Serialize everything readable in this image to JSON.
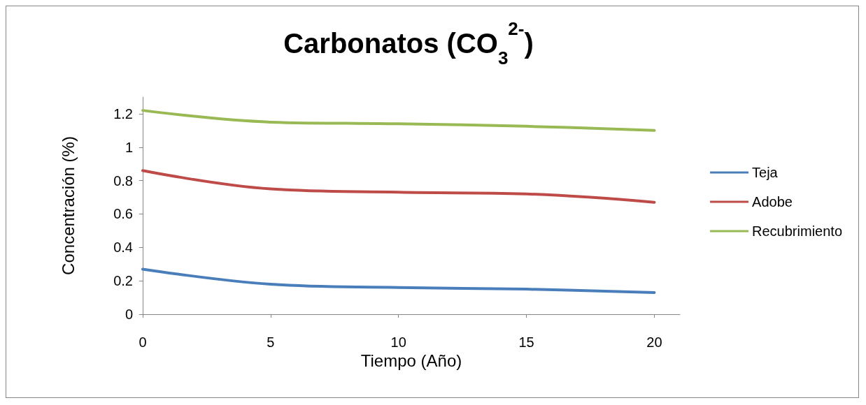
{
  "chart_data": {
    "type": "line",
    "title": "Carbonatos (CO$_{3}$$^{2-}$)",
    "xlabel": "Tiempo (Año)",
    "ylabel": "Concentración (%)",
    "x": [
      0,
      5,
      10,
      15,
      20
    ],
    "series": [
      {
        "name": "Teja",
        "color": "#4a7ebb",
        "values": [
          0.27,
          0.18,
          0.16,
          0.15,
          0.13
        ]
      },
      {
        "name": "Adobe",
        "color": "#be4b48",
        "values": [
          0.86,
          0.75,
          0.73,
          0.72,
          0.67
        ]
      },
      {
        "name": "Recubrimiento",
        "color": "#98b954",
        "values": [
          1.22,
          1.15,
          1.14,
          1.125,
          1.1
        ]
      }
    ],
    "xlim": [
      0,
      21
    ],
    "xticks": [
      0,
      5,
      10,
      15,
      20
    ],
    "ylim": [
      0,
      1.3
    ],
    "yticks": [
      0,
      0.2,
      0.4,
      0.6,
      0.8,
      1,
      1.2
    ],
    "grid": false,
    "legend": "right",
    "marker": "none",
    "line_style": "solid"
  }
}
